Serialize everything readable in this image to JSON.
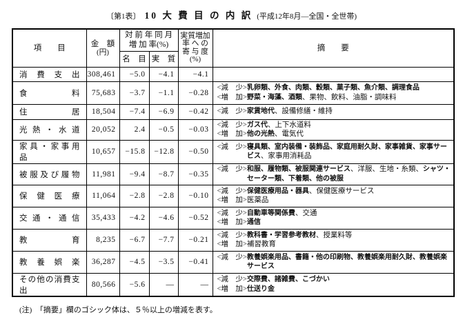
{
  "title": {
    "prefix": "〔第1表〕",
    "main": "10 大 費 目 の 内 訳",
    "suffix": "(平成12年8月―全国・全世帯)"
  },
  "header": {
    "item": "項　　目",
    "amount_line1": "金　額",
    "amount_line2": "(円)",
    "rate_line1": "対 前 年 同 月",
    "rate_line2": "増 加 率(%)",
    "nominal": "名　目",
    "real": "実　質",
    "contribution_lines": [
      "実質増加",
      "率 へ の",
      "寄 与 度",
      "(%)"
    ],
    "remarks": "摘　　要"
  },
  "rows": [
    {
      "label": "消 費 支 出",
      "amount": "308,461",
      "nominal": "−5.0",
      "real": "−4.1",
      "contribution": "−4.1",
      "remarks": []
    },
    {
      "label": "食 料",
      "amount": "75,683",
      "nominal": "−3.7",
      "real": "−1.1",
      "contribution": "−0.28",
      "remarks": [
        {
          "label": "<減　少>",
          "segments": [
            {
              "text": "乳卵類、外食、肉類、穀類、菓子類、魚介類、調理食品",
              "bold": true
            }
          ]
        },
        {
          "label": "<増　加>",
          "segments": [
            {
              "text": "野菜・海藻、酒類",
              "bold": true
            },
            {
              "text": "、果物、飲料、油脂・調味料",
              "bold": false
            }
          ]
        }
      ]
    },
    {
      "label": "住 居",
      "amount": "18,504",
      "nominal": "−7.4",
      "real": "−6.9",
      "contribution": "−0.42",
      "remarks": [
        {
          "label": "<減　少>",
          "segments": [
            {
              "text": "家賃地代",
              "bold": true
            },
            {
              "text": "、設備修繕・維持",
              "bold": false
            }
          ]
        }
      ]
    },
    {
      "label": "光 熱 ・ 水 道",
      "amount": "20,052",
      "nominal": "2.4",
      "real": "−0.5",
      "contribution": "−0.03",
      "remarks": [
        {
          "label": "<減　少>",
          "segments": [
            {
              "text": "ガス代",
              "bold": true
            },
            {
              "text": "、上下水道料",
              "bold": false
            }
          ]
        },
        {
          "label": "<増　加>",
          "segments": [
            {
              "text": "他の光熱",
              "bold": true
            },
            {
              "text": "、電気代",
              "bold": false
            }
          ]
        }
      ]
    },
    {
      "label": "家 具 ・ 家 事 用 品",
      "amount": "10,657",
      "nominal": "−15.8",
      "real": "−12.8",
      "contribution": "−0.50",
      "remarks": [
        {
          "label": "<減　少>",
          "segments": [
            {
              "text": "寝具類、室内装備・装飾品、家庭用耐久財、家事雑貨、家事サービス",
              "bold": true
            },
            {
              "text": "、家事用消耗品",
              "bold": false
            }
          ]
        }
      ]
    },
    {
      "label": "被 服 及 び 履 物",
      "amount": "11,981",
      "nominal": "−9.4",
      "real": "−8.7",
      "contribution": "−0.35",
      "remarks": [
        {
          "label": "<減　少>",
          "segments": [
            {
              "text": "和服、履物類、被服関連サービス",
              "bold": true
            },
            {
              "text": "、洋服、生地・糸類、",
              "bold": false
            },
            {
              "text": "シャツ・セーター類、下着類、他の被服",
              "bold": true
            }
          ]
        }
      ]
    },
    {
      "label": "保 健 医 療",
      "amount": "11,064",
      "nominal": "−2.8",
      "real": "−2.8",
      "contribution": "−0.10",
      "remarks": [
        {
          "label": "<減　少>",
          "segments": [
            {
              "text": "保健医療用品・器具",
              "bold": true
            },
            {
              "text": "、保健医療サービス",
              "bold": false
            }
          ]
        },
        {
          "label": "<増　加>",
          "segments": [
            {
              "text": "医薬品",
              "bold": false
            }
          ]
        }
      ]
    },
    {
      "label": "交 通 ・ 通 信",
      "amount": "35,433",
      "nominal": "−4.2",
      "real": "−4.6",
      "contribution": "−0.52",
      "remarks": [
        {
          "label": "<減　少>",
          "segments": [
            {
              "text": "自動車等関係費",
              "bold": true
            },
            {
              "text": "、交通",
              "bold": false
            }
          ]
        },
        {
          "label": "<増　加>",
          "segments": [
            {
              "text": "通信",
              "bold": true
            }
          ]
        }
      ]
    },
    {
      "label": "教 育",
      "amount": "8,235",
      "nominal": "−6.7",
      "real": "−7.7",
      "contribution": "−0.21",
      "remarks": [
        {
          "label": "<減　少>",
          "segments": [
            {
              "text": "教科書・学習参考教材",
              "bold": true
            },
            {
              "text": "、授業料等",
              "bold": false
            }
          ]
        },
        {
          "label": "<増　加>",
          "segments": [
            {
              "text": "補習教育",
              "bold": false
            }
          ]
        }
      ]
    },
    {
      "label": "教 養 娯 楽",
      "amount": "36,287",
      "nominal": "−4.5",
      "real": "−3.5",
      "contribution": "−0.41",
      "remarks": [
        {
          "label": "<減　少>",
          "segments": [
            {
              "text": "教養娯楽用品、書籍・他の印刷物、教養娯楽用耐久財、教養娯楽サービス",
              "bold": true
            }
          ]
        }
      ]
    },
    {
      "label": "その他の消費支出",
      "amount": "80,566",
      "nominal": "−5.6",
      "real": "—",
      "contribution": "—",
      "remarks": [
        {
          "label": "<減　少>",
          "segments": [
            {
              "text": "交際費、諸雑費、こづかい",
              "bold": true
            }
          ]
        },
        {
          "label": "<増　加>",
          "segments": [
            {
              "text": "仕送り金",
              "bold": true
            }
          ]
        }
      ]
    }
  ],
  "footnote": "(注)　「摘要」欄のゴシック体は、５％以上の増減を表す。"
}
